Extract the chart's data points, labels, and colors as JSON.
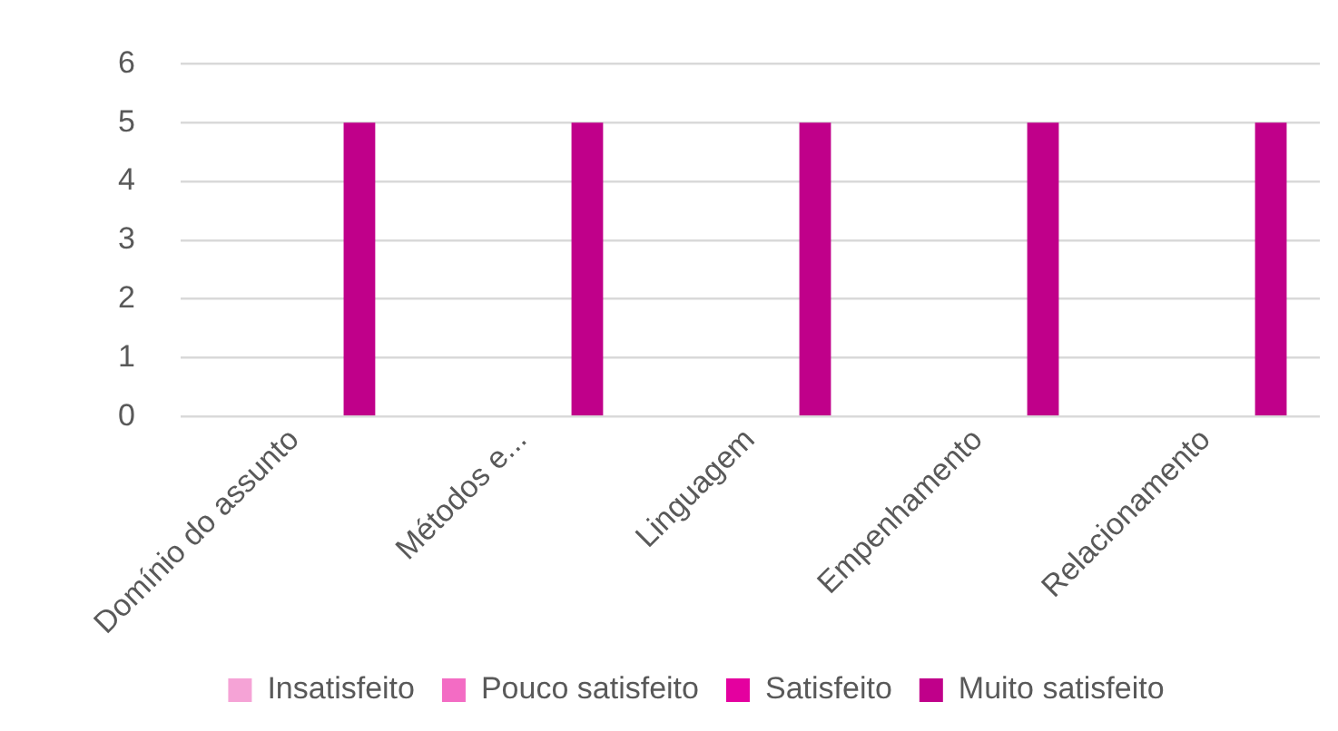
{
  "chart_data": {
    "type": "bar",
    "categories": [
      "Domínio do assunto",
      "Métodos e...",
      "Linguagem",
      "Empenhamento",
      "Relacionamento"
    ],
    "series": [
      {
        "name": "Insatisfeito",
        "color": "#f5a3d6",
        "values": [
          0,
          0,
          0,
          0,
          0
        ]
      },
      {
        "name": "Pouco satisfeito",
        "color": "#f36cc4",
        "values": [
          0,
          0,
          0,
          0,
          0
        ]
      },
      {
        "name": "Satisfeito",
        "color": "#e4009f",
        "values": [
          0,
          0,
          0,
          0,
          0
        ]
      },
      {
        "name": "Muito satisfeito",
        "color": "#c0008a",
        "values": [
          5,
          5,
          5,
          5,
          5
        ]
      }
    ],
    "ylim": [
      0,
      6
    ],
    "yticks": [
      0,
      1,
      2,
      3,
      4,
      5,
      6
    ],
    "grid": "y",
    "legend": "bottom"
  }
}
